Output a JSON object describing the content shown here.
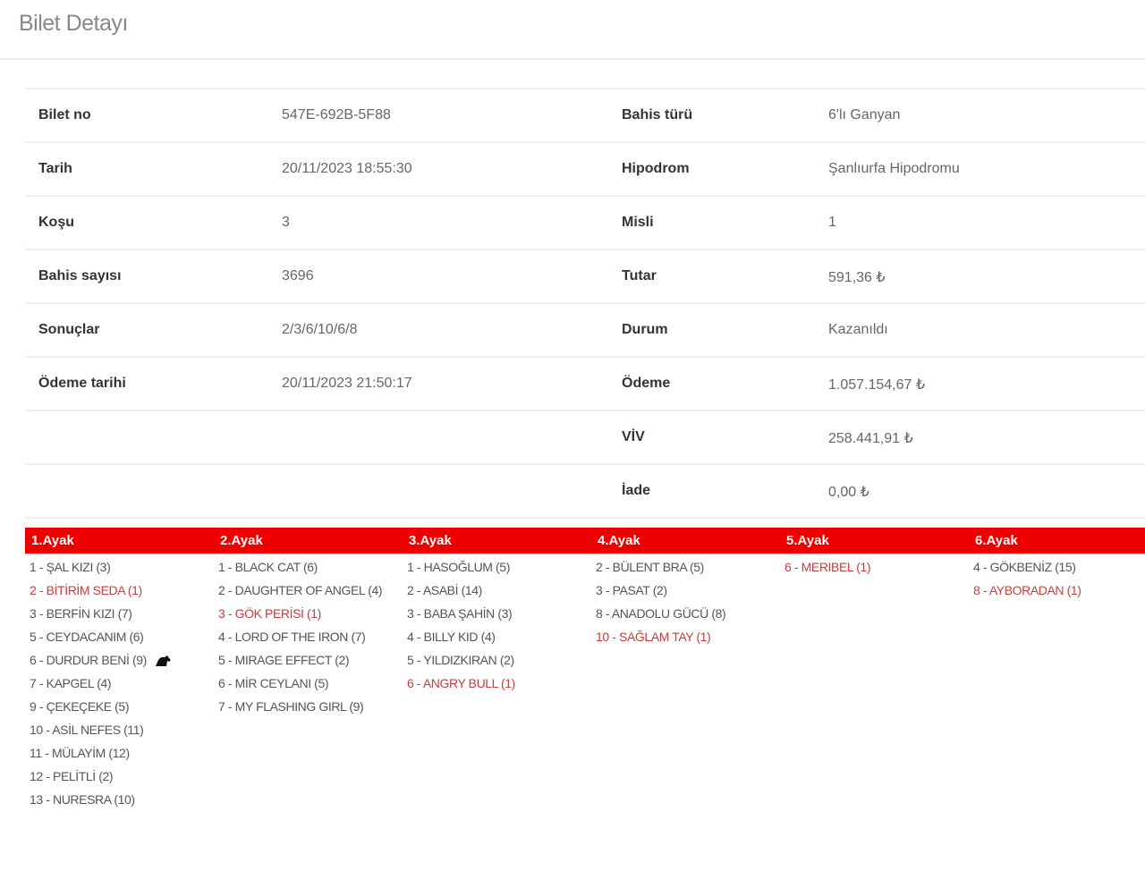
{
  "page_title": "Bilet Detayı",
  "details": [
    {
      "l1": "Bilet no",
      "v1": "547E-692B-5F88",
      "l2": "Bahis türü",
      "v2": "6'lı Ganyan"
    },
    {
      "l1": "Tarih",
      "v1": "20/11/2023 18:55:30",
      "l2": "Hipodrom",
      "v2": "Şanlıurfa Hipodromu"
    },
    {
      "l1": "Koşu",
      "v1": "3",
      "l2": "Misli",
      "v2": "1"
    },
    {
      "l1": "Bahis sayısı",
      "v1": "3696",
      "l2": "Tutar",
      "v2": "591,36 ₺"
    },
    {
      "l1": "Sonuçlar",
      "v1": "2/3/6/10/6/8",
      "l2": "Durum",
      "v2": "Kazanıldı"
    },
    {
      "l1": "Ödeme tarihi",
      "v1": "20/11/2023 21:50:17",
      "l2": "Ödeme",
      "v2": "1.057.154,67 ₺"
    },
    {
      "l1": "",
      "v1": "",
      "l2": "VİV",
      "v2": "258.441,91 ₺"
    },
    {
      "l1": "",
      "v1": "",
      "l2": "İade",
      "v2": "0,00 ₺"
    }
  ],
  "accent_color": "#ee0000",
  "win_color": "#c24040",
  "legs": [
    {
      "title": "1.Ayak",
      "items": [
        {
          "text": "1 - ŞAL KIZI (3)",
          "win": false
        },
        {
          "text": "2 - BİTİRİM SEDA (1)",
          "win": true
        },
        {
          "text": "3 - BERFİN KIZI (7)",
          "win": false
        },
        {
          "text": "5 - CEYDACANIM (6)",
          "win": false
        },
        {
          "text": "6 - DURDUR BENİ (9)",
          "win": false,
          "icon": "horse-icon"
        },
        {
          "text": "7 - KAPGEL (4)",
          "win": false
        },
        {
          "text": "9 - ÇEKEÇEKE (5)",
          "win": false
        },
        {
          "text": "10 - ASİL NEFES (11)",
          "win": false
        },
        {
          "text": "11 - MÜLAYİM (12)",
          "win": false
        },
        {
          "text": "12 - PELİTLİ (2)",
          "win": false
        },
        {
          "text": "13 - NURESRA (10)",
          "win": false
        }
      ]
    },
    {
      "title": "2.Ayak",
      "items": [
        {
          "text": "1 - BLACK CAT (6)",
          "win": false
        },
        {
          "text": "2 - DAUGHTER OF ANGEL (4)",
          "win": false
        },
        {
          "text": "3 - GÖK PERİSİ (1)",
          "win": true
        },
        {
          "text": "4 - LORD OF THE IRON (7)",
          "win": false
        },
        {
          "text": "5 - MIRAGE EFFECT (2)",
          "win": false
        },
        {
          "text": "6 - MİR CEYLANI (5)",
          "win": false
        },
        {
          "text": "7 - MY FLASHING GIRL (9)",
          "win": false
        }
      ]
    },
    {
      "title": "3.Ayak",
      "items": [
        {
          "text": "1 - HASOĞLUM (5)",
          "win": false
        },
        {
          "text": "2 - ASABİ (14)",
          "win": false
        },
        {
          "text": "3 - BABA ŞAHİN (3)",
          "win": false
        },
        {
          "text": "4 - BILLY KID (4)",
          "win": false
        },
        {
          "text": "5 - YILDIZKIRAN (2)",
          "win": false
        },
        {
          "text": "6 - ANGRY BULL (1)",
          "win": true
        }
      ]
    },
    {
      "title": "4.Ayak",
      "items": [
        {
          "text": "2 - BÜLENT BRA (5)",
          "win": false
        },
        {
          "text": "3 - PASAT (2)",
          "win": false
        },
        {
          "text": "8 - ANADOLU GÜCÜ (8)",
          "win": false
        },
        {
          "text": "10 - SAĞLAM TAY (1)",
          "win": true
        }
      ]
    },
    {
      "title": "5.Ayak",
      "items": [
        {
          "text": "6 - MERIBEL (1)",
          "win": true
        }
      ]
    },
    {
      "title": "6.Ayak",
      "items": [
        {
          "text": "4 - GÖKBENİZ (15)",
          "win": false
        },
        {
          "text": "8 - AYBORADAN (1)",
          "win": true
        }
      ]
    }
  ]
}
